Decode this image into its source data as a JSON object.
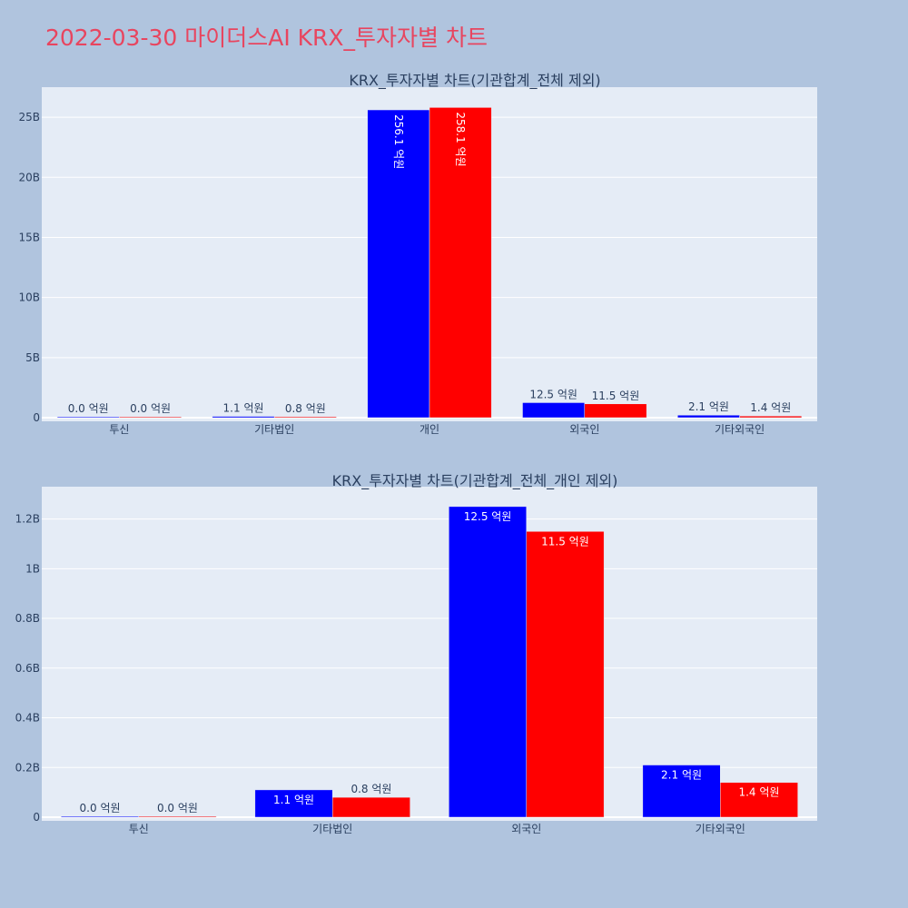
{
  "page": {
    "title": "2022-03-30 마이더스AI KRX_투자자별 차트",
    "background": "#b0c4de",
    "title_color": "#e8455f",
    "plot_background": "#e5ecf6"
  },
  "chart_data": [
    {
      "type": "bar",
      "title": "KRX_투자자별 차트(기관합계_전체 제외)",
      "categories": [
        "투신",
        "기타법인",
        "개인",
        "외국인",
        "기타외국인"
      ],
      "series": [
        {
          "color": "#0000ff",
          "values": [
            0.0,
            110000000,
            25610000000,
            1250000000,
            210000000
          ],
          "labels": [
            "0.0 억원",
            "1.1 억원",
            "256.1 억원",
            "12.5 억원",
            "2.1 억원"
          ]
        },
        {
          "color": "#ff0000",
          "values": [
            0.0,
            80000000,
            25810000000,
            1150000000,
            140000000
          ],
          "labels": [
            "0.0 억원",
            "0.8 억원",
            "258.1 억원",
            "11.5 억원",
            "1.4 억원"
          ]
        }
      ],
      "ylim": [
        0,
        27500000000
      ],
      "yticks": [
        0,
        5000000000,
        10000000000,
        15000000000,
        20000000000,
        25000000000
      ],
      "ytick_labels": [
        "0",
        "5B",
        "10B",
        "15B",
        "20B",
        "25B"
      ],
      "grid": true,
      "legend": "none"
    },
    {
      "type": "bar",
      "title": "KRX_투자자별 차트(기관합계_전체_개인 제외)",
      "categories": [
        "투신",
        "기타법인",
        "외국인",
        "기타외국인"
      ],
      "series": [
        {
          "color": "#0000ff",
          "values": [
            0.0,
            110000000,
            1250000000,
            210000000
          ],
          "labels": [
            "0.0 억원",
            "1.1 억원",
            "12.5 억원",
            "2.1 억원"
          ]
        },
        {
          "color": "#ff0000",
          "values": [
            0.0,
            80000000,
            1150000000,
            140000000
          ],
          "labels": [
            "0.0 억원",
            "0.8 억원",
            "11.5 억원",
            "1.4 억원"
          ]
        }
      ],
      "ylim": [
        0,
        1330000000
      ],
      "yticks": [
        0,
        200000000,
        400000000,
        600000000,
        800000000,
        1000000000,
        1200000000
      ],
      "ytick_labels": [
        "0",
        "0.2B",
        "0.4B",
        "0.6B",
        "0.8B",
        "1B",
        "1.2B"
      ],
      "grid": true,
      "legend": "none"
    }
  ]
}
